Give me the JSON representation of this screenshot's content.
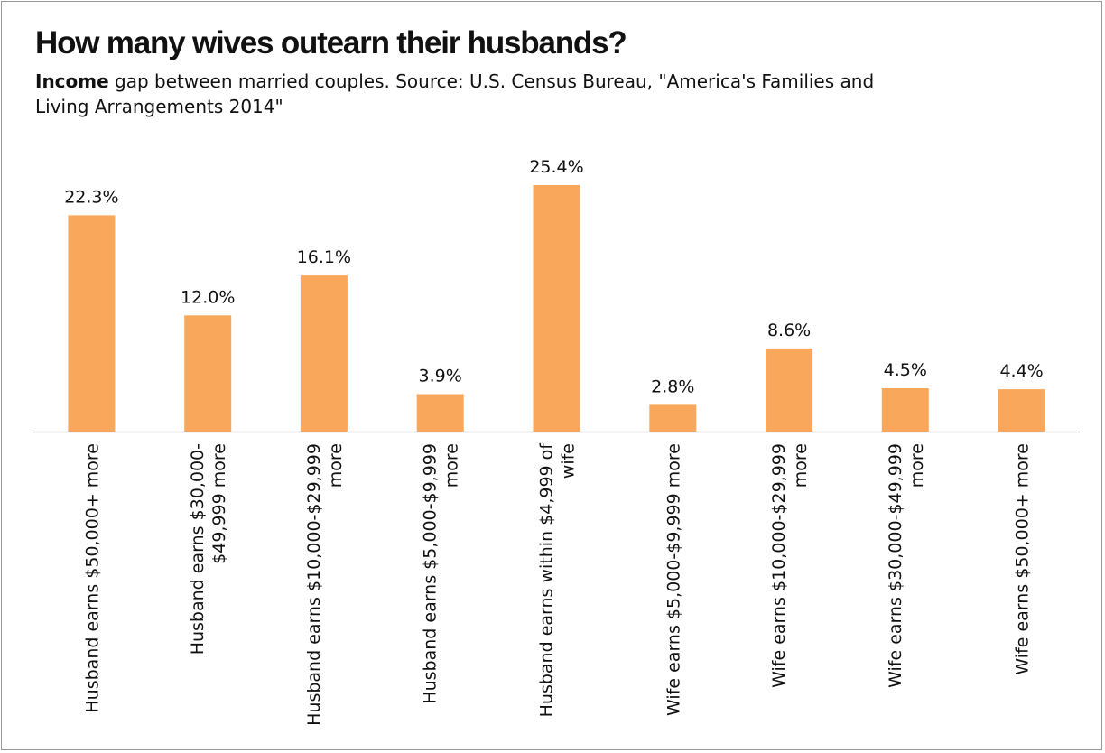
{
  "header": {
    "title": "How many wives outearn their husbands?",
    "subtitle_lead": "Income",
    "subtitle_rest": " gap between married couples. Source: U.S. Census Bureau, \"America's Families and Living Arrangements 2014\""
  },
  "colors": {
    "bar": "#F9A85B",
    "axis": "#A6A6A6"
  },
  "chart_data": {
    "type": "bar",
    "title": "How many wives outearn their husbands?",
    "xlabel": "",
    "ylabel": "",
    "ylim": [
      0,
      25.4
    ],
    "grid": false,
    "categories": [
      "Husband earns $50,000+ more",
      "Husband earns $30,000-$49,999 more",
      "Husband earns $10,000-$29,999 more",
      "Husband earns $5,000-$9,999 more",
      "Husband earns within $4,999 of wife",
      "Wife earns $5,000-$9,999 more",
      "Wife earns $10,000-$29,999 more",
      "Wife earns $30,000-$49,999 more",
      "Wife earns $50,000+ more"
    ],
    "category_lines": [
      [
        "Husband earns $50,000+ more"
      ],
      [
        "Husband earns $30,000-",
        "$49,999 more"
      ],
      [
        "Husband earns $10,000-$29,999",
        "more"
      ],
      [
        "Husband earns $5,000-$9,999",
        "more"
      ],
      [
        "Husband earns within $4,999 of",
        "wife"
      ],
      [
        "Wife earns $5,000-$9,999 more"
      ],
      [
        "Wife earns $10,000-$29,999",
        "more"
      ],
      [
        "Wife earns $30,000-$49,999",
        "more"
      ],
      [
        "Wife earns $50,000+ more"
      ]
    ],
    "values": [
      22.3,
      12.0,
      16.1,
      3.9,
      25.4,
      2.8,
      8.6,
      4.5,
      4.4
    ],
    "data_labels": [
      "22.3%",
      "12.0%",
      "16.1%",
      "3.9%",
      "25.4%",
      "2.8%",
      "8.6%",
      "4.5%",
      "4.4%"
    ]
  }
}
